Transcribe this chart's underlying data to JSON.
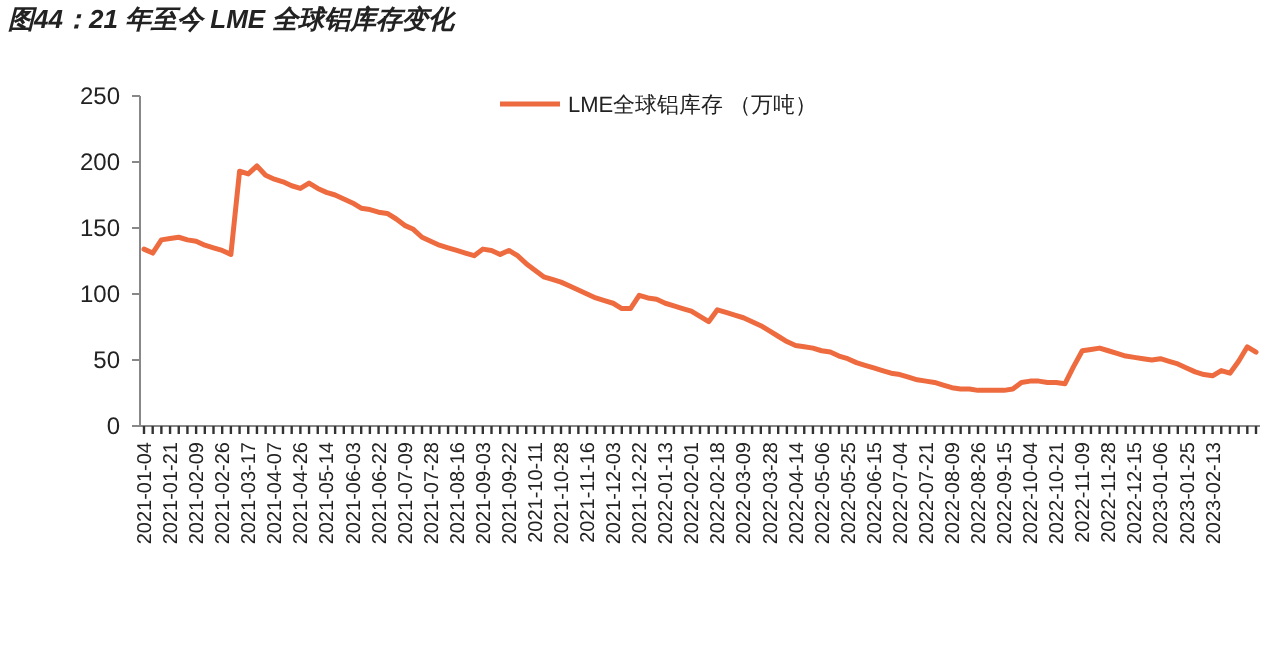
{
  "chart_data": {
    "type": "line",
    "title": "图44：21 年至今 LME 全球铝库存变化",
    "categories": [
      "2021-01-04",
      null,
      null,
      "2021-01-21",
      null,
      null,
      "2021-02-09",
      null,
      null,
      "2021-02-26",
      null,
      null,
      "2021-03-17",
      null,
      null,
      "2021-04-07",
      null,
      null,
      "2021-04-26",
      null,
      null,
      "2021-05-14",
      null,
      null,
      "2021-06-03",
      null,
      null,
      "2021-06-22",
      null,
      null,
      "2021-07-09",
      null,
      null,
      "2021-07-28",
      null,
      null,
      "2021-08-16",
      null,
      null,
      "2021-09-03",
      null,
      null,
      "2021-09-22",
      null,
      null,
      "2021-10-11",
      null,
      null,
      "2021-10-28",
      null,
      null,
      "2021-11-16",
      null,
      null,
      "2021-12-03",
      null,
      null,
      "2021-12-22",
      null,
      null,
      "2022-01-13",
      null,
      null,
      "2022-02-01",
      null,
      null,
      "2022-02-18",
      null,
      null,
      "2022-03-09",
      null,
      null,
      "2022-03-28",
      null,
      null,
      "2022-04-14",
      null,
      null,
      "2022-05-06",
      null,
      null,
      "2022-05-25",
      null,
      null,
      "2022-06-15",
      null,
      null,
      "2022-07-04",
      null,
      null,
      "2022-07-21",
      null,
      null,
      "2022-08-09",
      null,
      null,
      "2022-08-26",
      null,
      null,
      "2022-09-15",
      null,
      null,
      "2022-10-04",
      null,
      null,
      "2022-10-21",
      null,
      null,
      "2022-11-09",
      null,
      null,
      "2022-11-28",
      null,
      null,
      "2022-12-15",
      null,
      null,
      "2023-01-06",
      null,
      null,
      "2023-01-25",
      null,
      null,
      "2023-02-13",
      null,
      null,
      null,
      null,
      null
    ],
    "series": [
      {
        "name": "LME全球铝库存 （万吨）",
        "color": "#ee6b40",
        "values": [
          134,
          131,
          141,
          142,
          143,
          141,
          140,
          137,
          135,
          133,
          130,
          193,
          191,
          197,
          190,
          187,
          185,
          182,
          180,
          184,
          180,
          177,
          175,
          172,
          169,
          165,
          164,
          162,
          161,
          157,
          152,
          149,
          143,
          140,
          137,
          135,
          133,
          131,
          129,
          134,
          133,
          130,
          133,
          129,
          123,
          118,
          113,
          111,
          109,
          106,
          103,
          100,
          97,
          95,
          93,
          89,
          89,
          99,
          97,
          96,
          93,
          91,
          89,
          87,
          83,
          79,
          88,
          86,
          84,
          82,
          79,
          76,
          72,
          68,
          64,
          61,
          60,
          59,
          57,
          56,
          53,
          51,
          48,
          46,
          44,
          42,
          40,
          39,
          37,
          35,
          34,
          33,
          31,
          29,
          28,
          28,
          27,
          27,
          27,
          27,
          28,
          33,
          34,
          34,
          33,
          33,
          32,
          45,
          57,
          58,
          59,
          57,
          55,
          53,
          52,
          51,
          50,
          51,
          49,
          47,
          44,
          41,
          39,
          38,
          42,
          40,
          49,
          60,
          56
        ]
      }
    ],
    "ylim": [
      0,
      250
    ],
    "yticks": [
      0,
      50,
      100,
      150,
      200,
      250
    ],
    "grid": false,
    "legend": "top",
    "marker": "none",
    "line_style": "solid"
  }
}
